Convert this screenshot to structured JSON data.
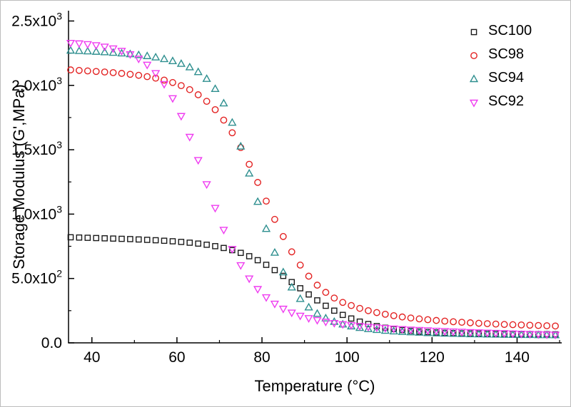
{
  "chart_data": {
    "type": "scatter",
    "title": "",
    "xlabel": "Temperature (°C)",
    "ylabel": "Storage Modulus (G',MPa)",
    "x_unit": "°C",
    "y_unit": "MPa",
    "xlim": [
      34.5,
      150.5
    ],
    "ylim": [
      0,
      2580
    ],
    "grid": false,
    "legend_position": "top-right",
    "x_ticks": [
      {
        "v": 40,
        "label": "40"
      },
      {
        "v": 60,
        "label": "60"
      },
      {
        "v": 80,
        "label": "80"
      },
      {
        "v": 100,
        "label": "100"
      },
      {
        "v": 120,
        "label": "120"
      },
      {
        "v": 140,
        "label": "140"
      }
    ],
    "x_minor_ticks": [
      50,
      70,
      90,
      110,
      130,
      150
    ],
    "y_ticks": [
      {
        "v": 0,
        "m": "0.0",
        "e": ""
      },
      {
        "v": 500,
        "m": "5.0x10",
        "e": "2"
      },
      {
        "v": 1000,
        "m": "1.0x10",
        "e": "3"
      },
      {
        "v": 1500,
        "m": "1.5x10",
        "e": "3"
      },
      {
        "v": 2000,
        "m": "2.0x10",
        "e": "3"
      },
      {
        "v": 2500,
        "m": "2.5x10",
        "e": "3"
      }
    ],
    "y_minor_ticks": [
      250,
      750,
      1250,
      1750,
      2250
    ],
    "x": [
      35,
      37,
      39,
      41,
      43,
      45,
      47,
      49,
      51,
      53,
      55,
      57,
      59,
      61,
      63,
      65,
      67,
      69,
      71,
      73,
      75,
      77,
      79,
      81,
      83,
      85,
      87,
      89,
      91,
      93,
      95,
      97,
      99,
      101,
      103,
      105,
      107,
      109,
      111,
      113,
      115,
      117,
      119,
      121,
      123,
      125,
      127,
      129,
      131,
      133,
      135,
      137,
      139,
      141,
      143,
      145,
      147,
      149
    ],
    "series": [
      {
        "name": "SC100",
        "marker": "square",
        "color": "#1a1a1a",
        "values": [
          820,
          818,
          816,
          814,
          812,
          810,
          808,
          806,
          803,
          800,
          797,
          793,
          789,
          784,
          778,
          771,
          762,
          751,
          737,
          720,
          699,
          673,
          642,
          606,
          565,
          520,
          472,
          424,
          376,
          330,
          288,
          250,
          217,
          189,
          165,
          146,
          130,
          117,
          107,
          99,
          93,
          88,
          84,
          81,
          78,
          76,
          74,
          73,
          72,
          71,
          70,
          69,
          69,
          68,
          68,
          67,
          67,
          66
        ]
      },
      {
        "name": "SC98",
        "marker": "circle",
        "color": "#e32222",
        "values": [
          2120,
          2116,
          2112,
          2108,
          2104,
          2099,
          2093,
          2086,
          2078,
          2068,
          2056,
          2041,
          2022,
          1998,
          1967,
          1927,
          1876,
          1811,
          1730,
          1632,
          1517,
          1387,
          1246,
          1101,
          959,
          826,
          707,
          604,
          518,
          448,
          392,
          348,
          314,
          290,
          268,
          250,
          235,
          222,
          211,
          201,
          193,
          186,
          180,
          174,
          169,
          164,
          160,
          156,
          152,
          149,
          146,
          143,
          141,
          139,
          137,
          135,
          133,
          131
        ]
      },
      {
        "name": "SC94",
        "marker": "triangle-up",
        "color": "#2e8f8f",
        "values": [
          2270,
          2267,
          2264,
          2261,
          2257,
          2253,
          2248,
          2242,
          2235,
          2227,
          2217,
          2204,
          2188,
          2167,
          2140,
          2103,
          2050,
          1972,
          1860,
          1710,
          1525,
          1315,
          1095,
          885,
          700,
          548,
          430,
          341,
          275,
          226,
          190,
          163,
          143,
          128,
          116,
          107,
          100,
          94,
          89,
          85,
          82,
          79,
          76,
          74,
          72,
          70,
          69,
          67,
          66,
          65,
          64,
          63,
          62,
          61,
          61,
          60,
          60,
          59
        ]
      },
      {
        "name": "SC92",
        "marker": "triangle-down",
        "color": "#ef3cf0",
        "values": [
          2330,
          2326,
          2320,
          2312,
          2301,
          2287,
          2268,
          2242,
          2207,
          2160,
          2095,
          2010,
          1900,
          1762,
          1600,
          1420,
          1232,
          1048,
          878,
          729,
          603,
          500,
          418,
          354,
          304,
          265,
          235,
          211,
          192,
          177,
          164,
          154,
          145,
          138,
          131,
          125,
          120,
          115,
          111,
          107,
          103,
          100,
          97,
          94,
          91,
          88,
          86,
          83,
          81,
          79,
          77,
          75,
          73,
          71,
          69,
          67,
          65,
          63
        ]
      }
    ]
  }
}
